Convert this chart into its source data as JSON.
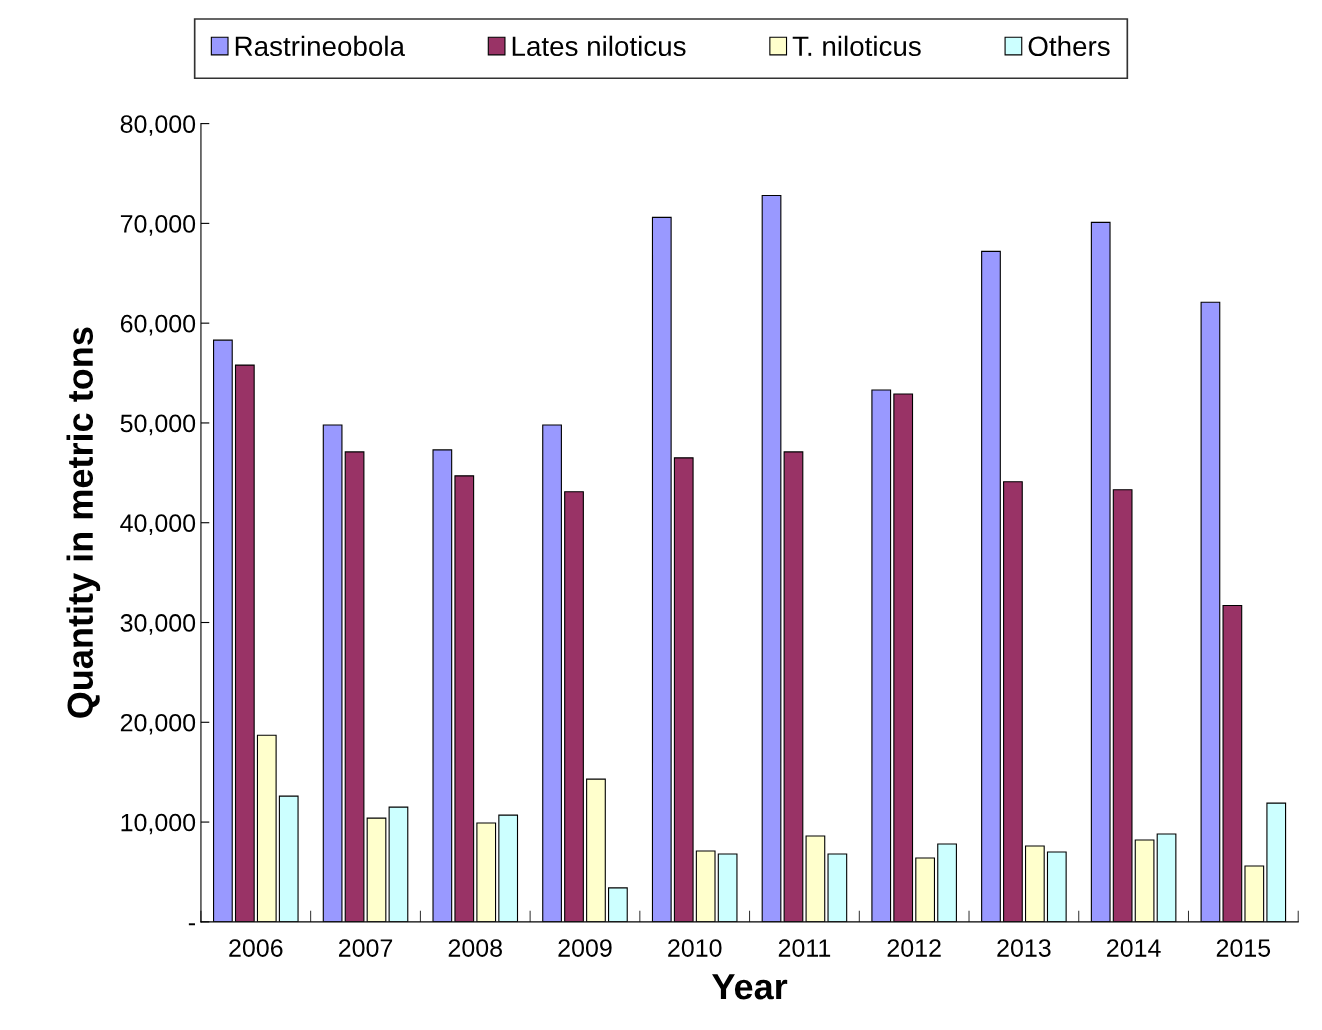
{
  "chart_data": {
    "type": "bar",
    "xlabel": "Year",
    "ylabel": "Quantity in metric tons",
    "categories": [
      "2006",
      "2007",
      "2008",
      "2009",
      "2010",
      "2011",
      "2012",
      "2013",
      "2014",
      "2015"
    ],
    "series": [
      {
        "name": "Rastrineobola",
        "color": "#9999ff",
        "values": [
          58300,
          49800,
          47300,
          49800,
          70600,
          72800,
          53300,
          67200,
          70100,
          62100
        ]
      },
      {
        "name": "Lates niloticus",
        "color": "#993366",
        "values": [
          55800,
          47100,
          44700,
          43100,
          46500,
          47100,
          52900,
          44100,
          43300,
          31700
        ]
      },
      {
        "name": "T. niloticus",
        "color": "#ffffcc",
        "values": [
          18700,
          10400,
          9900,
          14300,
          7100,
          8600,
          6400,
          7600,
          8200,
          5600
        ]
      },
      {
        "name": "Others",
        "color": "#ccffff",
        "values": [
          12600,
          11500,
          10700,
          3400,
          6800,
          6800,
          7800,
          7000,
          8800,
          11900
        ]
      }
    ],
    "ylim": [
      0,
      80000
    ],
    "yticks": [
      {
        "value": 0,
        "label": "-"
      },
      {
        "value": 10000,
        "label": "10,000"
      },
      {
        "value": 20000,
        "label": "20,000"
      },
      {
        "value": 30000,
        "label": "30,000"
      },
      {
        "value": 40000,
        "label": "40,000"
      },
      {
        "value": 50000,
        "label": "50,000"
      },
      {
        "value": 60000,
        "label": "60,000"
      },
      {
        "value": 70000,
        "label": "70,000"
      },
      {
        "value": 80000,
        "label": "80,000"
      }
    ],
    "grid": false,
    "legend": "top"
  }
}
